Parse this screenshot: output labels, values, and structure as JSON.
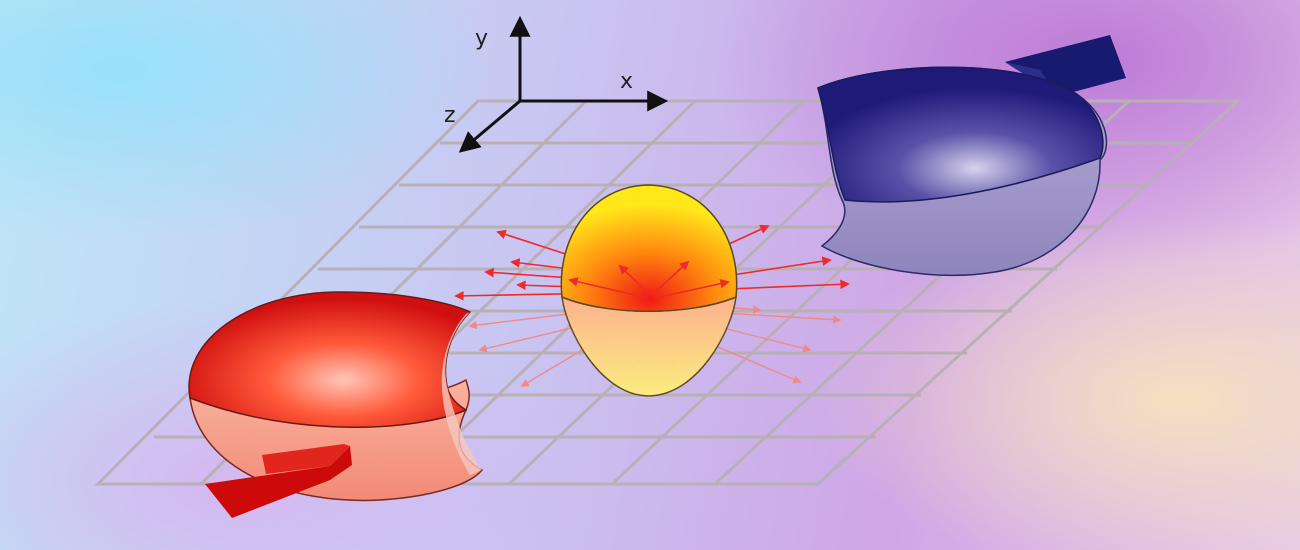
{
  "axes": {
    "x_label": "x",
    "y_label": "y",
    "z_label": "z"
  },
  "colors": {
    "grid": "#b9b0b5",
    "left_body": "#e8251a",
    "right_body": "#2a2a86",
    "center_body": "#ffd21a",
    "field_arrows": "#ee2a2a"
  }
}
